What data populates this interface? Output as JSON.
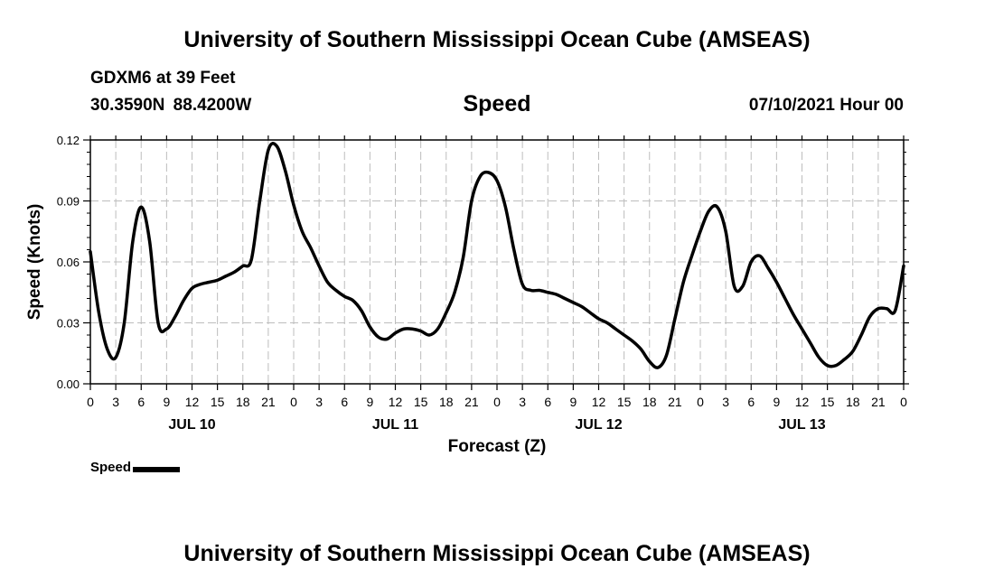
{
  "header": {
    "title": "University of Southern Mississippi Ocean Cube (AMSEAS)",
    "station": "GDXM6 at 39 Feet",
    "coordinates": "30.3590N  88.4200W",
    "parameter": "Speed",
    "datetime": "07/10/2021 Hour 00"
  },
  "footer": {
    "title": "University of Southern Mississippi Ocean Cube (AMSEAS)"
  },
  "legend": {
    "label": "Speed"
  },
  "chart_data": {
    "type": "line",
    "title": "Speed",
    "xlabel": "Forecast (Z)",
    "ylabel": "Speed (Knots)",
    "xlim": [
      0,
      96
    ],
    "ylim": [
      0,
      0.12
    ],
    "yticks": [
      0.0,
      0.03,
      0.06,
      0.09,
      0.12
    ],
    "ytick_labels": [
      "0.00",
      "0.03",
      "0.06",
      "0.09",
      "0.12"
    ],
    "xticks": [
      0,
      3,
      6,
      9,
      12,
      15,
      18,
      21,
      24,
      27,
      30,
      33,
      36,
      39,
      42,
      45,
      48,
      51,
      54,
      57,
      60,
      63,
      66,
      69,
      72,
      75,
      78,
      81,
      84,
      87,
      90,
      93,
      96
    ],
    "xtick_labels": [
      "0",
      "3",
      "6",
      "9",
      "12",
      "15",
      "18",
      "21",
      "0",
      "3",
      "6",
      "9",
      "12",
      "15",
      "18",
      "21",
      "0",
      "3",
      "6",
      "9",
      "12",
      "15",
      "18",
      "21",
      "0",
      "3",
      "6",
      "9",
      "12",
      "15",
      "18",
      "21",
      "0"
    ],
    "day_labels": [
      {
        "label": "JUL 10",
        "hour": 12
      },
      {
        "label": "JUL 11",
        "hour": 36
      },
      {
        "label": "JUL 12",
        "hour": 60
      },
      {
        "label": "JUL 13",
        "hour": 84
      }
    ],
    "grid": true,
    "series": [
      {
        "name": "Speed",
        "color": "#000000",
        "x": [
          0,
          1,
          2,
          3,
          4,
          5,
          6,
          7,
          8,
          9,
          10,
          11,
          12,
          13,
          14,
          15,
          16,
          17,
          18,
          19,
          20,
          21,
          22,
          23,
          24,
          25,
          26,
          27,
          28,
          29,
          30,
          31,
          32,
          33,
          34,
          35,
          36,
          37,
          38,
          39,
          40,
          41,
          42,
          43,
          44,
          45,
          46,
          47,
          48,
          49,
          50,
          51,
          52,
          53,
          54,
          55,
          56,
          57,
          58,
          59,
          60,
          61,
          62,
          63,
          64,
          65,
          66,
          67,
          68,
          69,
          70,
          71,
          72,
          73,
          74,
          75,
          76,
          77,
          78,
          79,
          80,
          81,
          82,
          83,
          84,
          85,
          86,
          87,
          88,
          89,
          90,
          91,
          92,
          93,
          94,
          95,
          96
        ],
        "values": [
          0.065,
          0.035,
          0.017,
          0.013,
          0.03,
          0.07,
          0.087,
          0.07,
          0.03,
          0.027,
          0.033,
          0.041,
          0.047,
          0.049,
          0.05,
          0.051,
          0.053,
          0.055,
          0.058,
          0.061,
          0.09,
          0.115,
          0.117,
          0.105,
          0.088,
          0.075,
          0.067,
          0.058,
          0.05,
          0.046,
          0.043,
          0.041,
          0.036,
          0.028,
          0.023,
          0.022,
          0.025,
          0.027,
          0.027,
          0.026,
          0.024,
          0.027,
          0.035,
          0.045,
          0.062,
          0.09,
          0.102,
          0.104,
          0.1,
          0.087,
          0.066,
          0.049,
          0.046,
          0.046,
          0.045,
          0.044,
          0.042,
          0.04,
          0.038,
          0.035,
          0.032,
          0.03,
          0.027,
          0.024,
          0.021,
          0.017,
          0.011,
          0.008,
          0.014,
          0.032,
          0.05,
          0.063,
          0.075,
          0.085,
          0.087,
          0.075,
          0.048,
          0.048,
          0.06,
          0.063,
          0.057,
          0.05,
          0.042,
          0.034,
          0.027,
          0.02,
          0.013,
          0.009,
          0.009,
          0.012,
          0.016,
          0.024,
          0.033,
          0.037,
          0.037,
          0.036,
          0.058
        ]
      }
    ]
  }
}
